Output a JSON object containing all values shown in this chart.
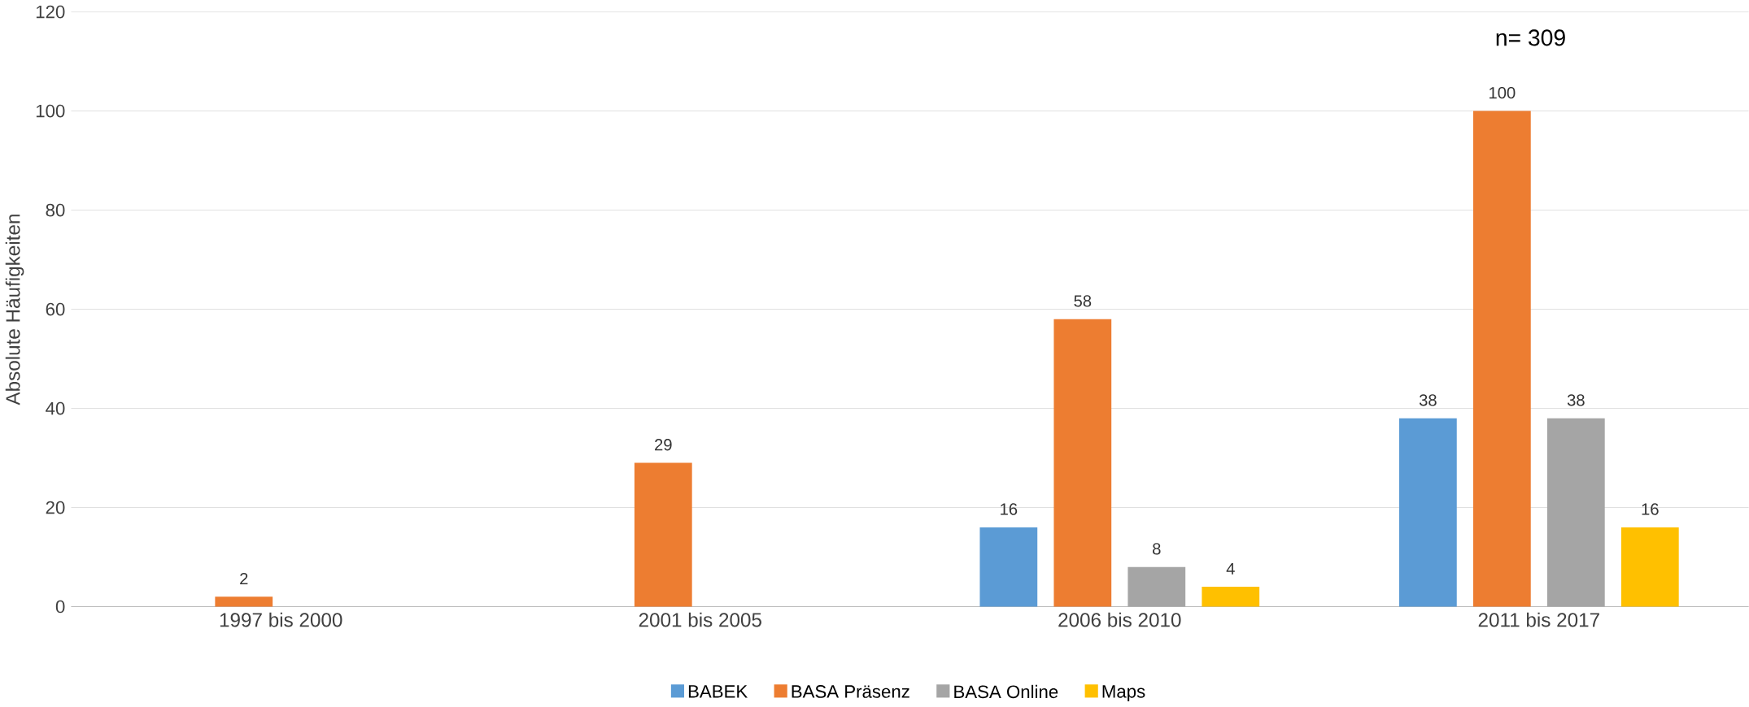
{
  "chart_data": {
    "type": "bar",
    "ylabel": "Absolute Häufigkeiten",
    "categories": [
      "1997 bis 2000",
      "2001 bis 2005",
      "2006 bis 2010",
      "2011 bis 2017"
    ],
    "series": [
      {
        "name": "BABEK",
        "color": "#5b9bd5",
        "values": [
          null,
          null,
          16,
          38
        ]
      },
      {
        "name": "BASA Präsenz",
        "color": "#ed7d31",
        "values": [
          2,
          29,
          58,
          100
        ]
      },
      {
        "name": "BASA Online",
        "color": "#a5a5a5",
        "values": [
          null,
          null,
          8,
          38
        ]
      },
      {
        "name": "Maps",
        "color": "#ffc000",
        "values": [
          null,
          null,
          4,
          16
        ]
      }
    ],
    "ylim": [
      0,
      120
    ],
    "yticks": [
      0,
      20,
      40,
      60,
      80,
      100,
      120
    ],
    "grid": "y",
    "legend": "bottom",
    "data_labels": true,
    "annotations": [
      "n= 309"
    ]
  }
}
